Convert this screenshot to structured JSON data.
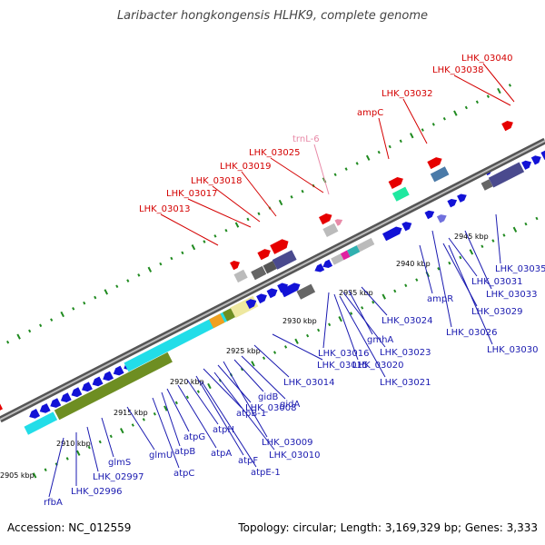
{
  "title": "Laribacter hongkongensis HLHK9, complete genome",
  "accession": "Accession: NC_012559",
  "summary": "Topology: circular; Length: 3,169,329 bp; Genes: 3,333",
  "colors": {
    "cds": "#1212d6",
    "red_gene": "#e60000",
    "label_red": "#d40000",
    "label_blue": "#1a1ab0",
    "label_pink": "#e88aa8",
    "backbone": "#777777",
    "tick_dots": "#1f8a1f",
    "cyan": "#22dde8",
    "olive": "#6e8e22",
    "gray_block": "#777777",
    "slate": "#4a4a8e"
  },
  "ticks": [
    "2905 kbp",
    "2910 kbp",
    "2915 kbp",
    "2920 kbp",
    "2925 kbp",
    "2930 kbp",
    "2935 kbp",
    "2940 kbp",
    "2945 kbp"
  ],
  "labels_top": [
    "LHK_03040",
    "LHK_03038",
    "LHK_03032",
    "ampC",
    "trnL-6",
    "LHK_03025",
    "LHK_03019",
    "LHK_03018",
    "LHK_03017",
    "LHK_03013"
  ],
  "labels_bottom": [
    "rfbA",
    "LHK_02996",
    "LHK_02997",
    "glmS",
    "glmU",
    "atpC",
    "atpB",
    "atpG",
    "atpA",
    "atpH",
    "atpF",
    "atpB-1",
    "atpE-1",
    "LHK_03008",
    "LHK_03009",
    "LHK_03010",
    "gidB",
    "gidA",
    "LHK_03014",
    "LHK_03015",
    "LHK_03016",
    "LHK_03020",
    "LHK_03021",
    "LHK_03023",
    "gmhA",
    "LHK_03024",
    "LHK_03026",
    "ampR",
    "LHK_03029",
    "LHK_03031",
    "LHK_03033",
    "LHK_03030",
    "LHK_03035"
  ]
}
